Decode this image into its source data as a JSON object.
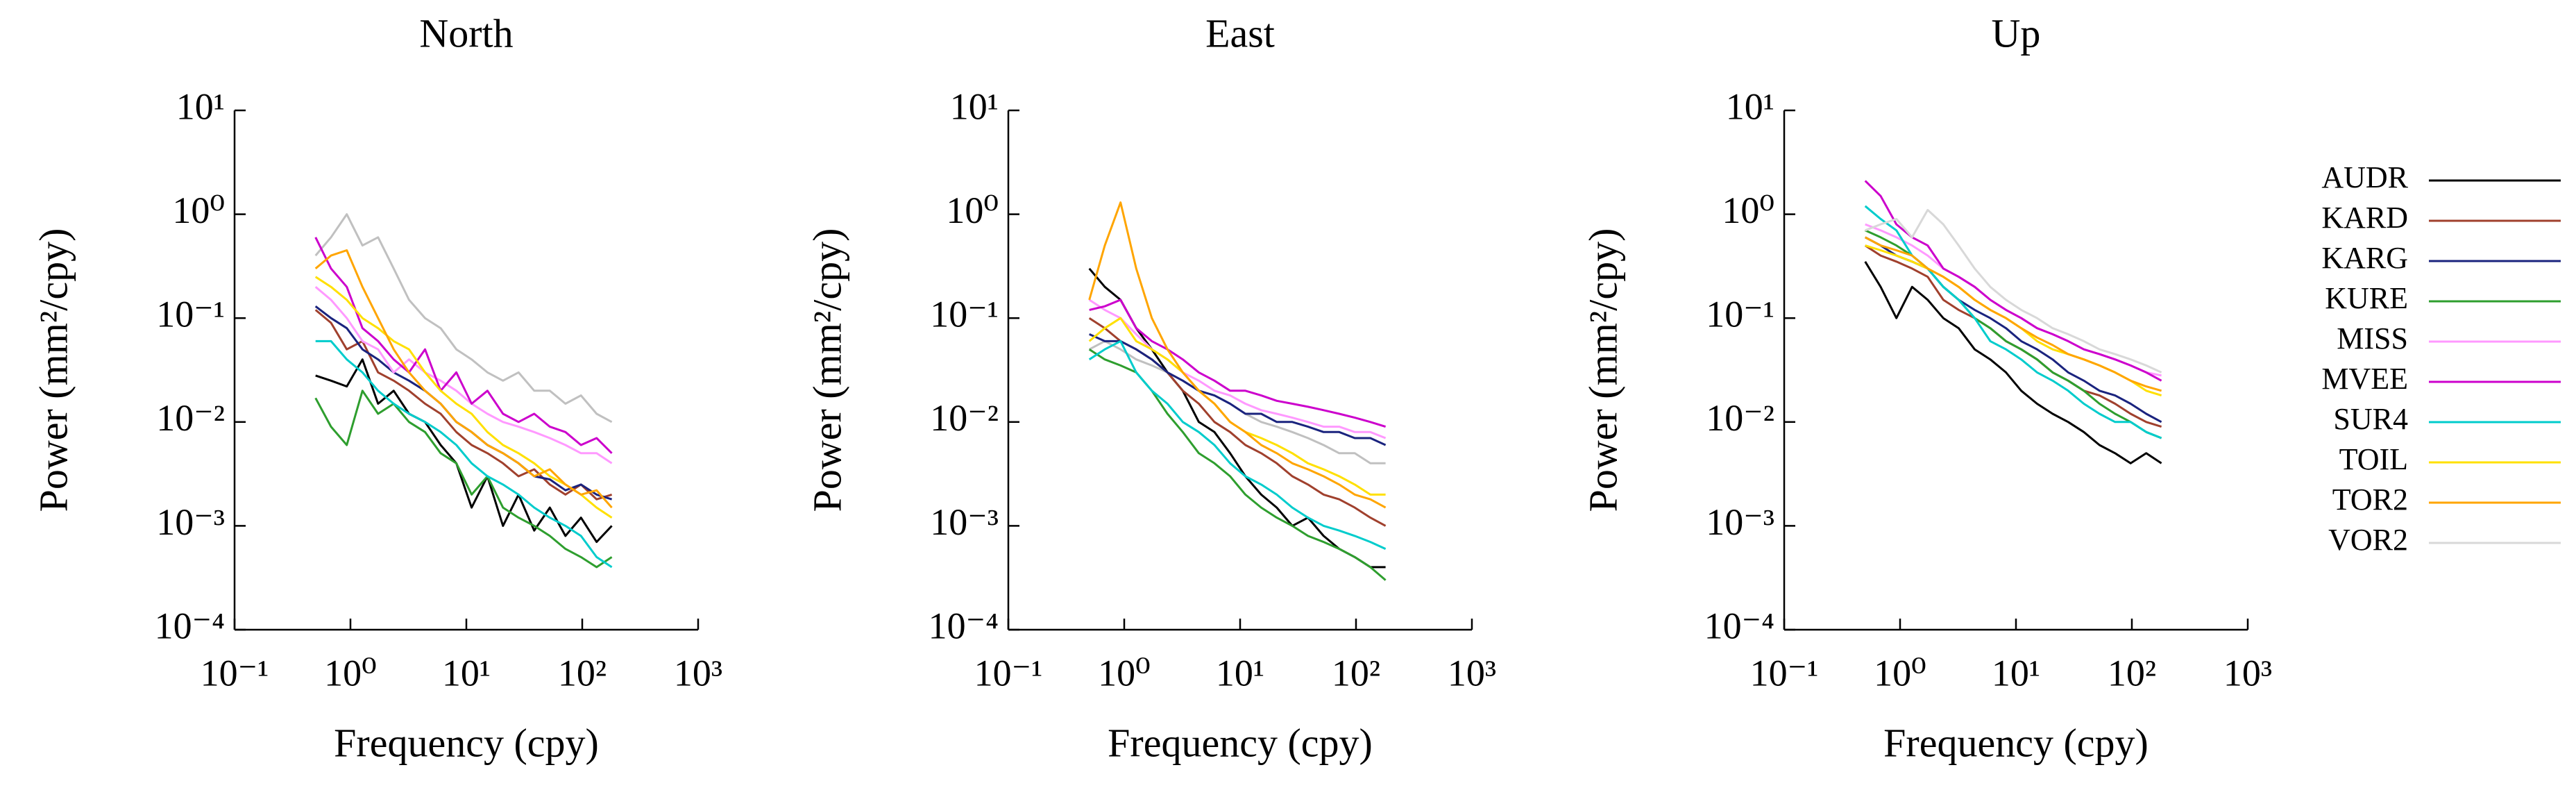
{
  "chart_data": [
    {
      "type": "line",
      "title": "North",
      "xlabel": "Frequency (cpy)",
      "ylabel": "Power (mm²/cpy)",
      "log_x": true,
      "log_y": true,
      "xlim": [
        0.1,
        1000
      ],
      "ylim": [
        0.0001,
        10
      ],
      "xticks": [
        {
          "value": 0.1,
          "label": "10⁻¹"
        },
        {
          "value": 1,
          "label": "10⁰"
        },
        {
          "value": 10,
          "label": "10¹"
        },
        {
          "value": 100,
          "label": "10²"
        },
        {
          "value": 1000,
          "label": "10³"
        }
      ],
      "yticks": [
        {
          "value": 0.0001,
          "label": "10⁻⁴"
        },
        {
          "value": 0.001,
          "label": "10⁻³"
        },
        {
          "value": 0.01,
          "label": "10⁻²"
        },
        {
          "value": 0.1,
          "label": "10⁻¹"
        },
        {
          "value": 1,
          "label": "10⁰"
        },
        {
          "value": 10,
          "label": "10¹"
        }
      ],
      "x": [
        0.5,
        0.68,
        0.93,
        1.27,
        1.73,
        2.36,
        3.2,
        4.4,
        6,
        8.2,
        11.1,
        15.2,
        20.7,
        28.2,
        38.5,
        52.5,
        71.6,
        97.6,
        133,
        180
      ],
      "series": [
        {
          "name": "VOR2",
          "color": "#c0c0c0",
          "values": [
            0.4,
            0.6,
            1.0,
            0.5,
            0.6,
            0.3,
            0.15,
            0.1,
            0.08,
            0.05,
            0.04,
            0.03,
            0.025,
            0.03,
            0.02,
            0.02,
            0.015,
            0.018,
            0.012,
            0.01
          ]
        },
        {
          "name": "AUDR",
          "color": "#000000",
          "values": [
            0.028,
            0.025,
            0.022,
            0.04,
            0.015,
            0.02,
            0.012,
            0.01,
            0.006,
            0.004,
            0.0015,
            0.003,
            0.001,
            0.002,
            0.0009,
            0.0015,
            0.0008,
            0.0012,
            0.0007,
            0.001
          ]
        },
        {
          "name": "KARD",
          "color": "#a0402d",
          "values": [
            0.12,
            0.09,
            0.05,
            0.06,
            0.03,
            0.025,
            0.02,
            0.015,
            0.012,
            0.008,
            0.006,
            0.005,
            0.004,
            0.003,
            0.0035,
            0.0025,
            0.002,
            0.0025,
            0.0018,
            0.002
          ]
        },
        {
          "name": "KARG",
          "color": "#1a237e",
          "values": [
            0.13,
            0.1,
            0.08,
            0.05,
            0.04,
            0.03,
            0.025,
            0.02,
            0.015,
            0.01,
            0.008,
            0.006,
            0.005,
            0.004,
            0.003,
            0.0028,
            0.0022,
            0.0025,
            0.002,
            0.0018
          ]
        },
        {
          "name": "KURE",
          "color": "#2e9e2e",
          "values": [
            0.017,
            0.009,
            0.006,
            0.02,
            0.012,
            0.015,
            0.01,
            0.008,
            0.005,
            0.004,
            0.002,
            0.003,
            0.0015,
            0.0012,
            0.001,
            0.0008,
            0.0006,
            0.0005,
            0.0004,
            0.0005
          ]
        },
        {
          "name": "MISS",
          "color": "#ff99ff",
          "values": [
            0.2,
            0.15,
            0.1,
            0.06,
            0.05,
            0.03,
            0.04,
            0.03,
            0.025,
            0.02,
            0.015,
            0.012,
            0.01,
            0.009,
            0.008,
            0.007,
            0.006,
            0.005,
            0.005,
            0.004
          ]
        },
        {
          "name": "MVEE",
          "color": "#cc00cc",
          "values": [
            0.6,
            0.3,
            0.2,
            0.08,
            0.06,
            0.04,
            0.03,
            0.05,
            0.02,
            0.03,
            0.015,
            0.02,
            0.012,
            0.01,
            0.012,
            0.009,
            0.008,
            0.006,
            0.007,
            0.005
          ]
        },
        {
          "name": "SUR4",
          "color": "#00cccc",
          "values": [
            0.06,
            0.06,
            0.04,
            0.03,
            0.02,
            0.015,
            0.012,
            0.01,
            0.008,
            0.006,
            0.004,
            0.003,
            0.0025,
            0.002,
            0.0015,
            0.0012,
            0.001,
            0.0008,
            0.0005,
            0.0004
          ]
        },
        {
          "name": "TOIL",
          "color": "#ffe000",
          "values": [
            0.25,
            0.2,
            0.15,
            0.1,
            0.08,
            0.06,
            0.05,
            0.03,
            0.02,
            0.015,
            0.012,
            0.008,
            0.006,
            0.005,
            0.004,
            0.003,
            0.0025,
            0.002,
            0.0015,
            0.0012
          ]
        },
        {
          "name": "TOR2",
          "color": "#ffa500",
          "values": [
            0.3,
            0.4,
            0.45,
            0.2,
            0.1,
            0.05,
            0.03,
            0.02,
            0.015,
            0.01,
            0.008,
            0.006,
            0.005,
            0.004,
            0.003,
            0.0035,
            0.0025,
            0.002,
            0.0022,
            0.0015
          ]
        }
      ]
    },
    {
      "type": "line",
      "title": "East",
      "xlabel": "Frequency (cpy)",
      "ylabel": "Power (mm²/cpy)",
      "log_x": true,
      "log_y": true,
      "xlim": [
        0.1,
        1000
      ],
      "ylim": [
        0.0001,
        10
      ],
      "xticks": [
        {
          "value": 0.1,
          "label": "10⁻¹"
        },
        {
          "value": 1,
          "label": "10⁰"
        },
        {
          "value": 10,
          "label": "10¹"
        },
        {
          "value": 100,
          "label": "10²"
        },
        {
          "value": 1000,
          "label": "10³"
        }
      ],
      "yticks": [
        {
          "value": 0.0001,
          "label": "10⁻⁴"
        },
        {
          "value": 0.001,
          "label": "10⁻³"
        },
        {
          "value": 0.01,
          "label": "10⁻²"
        },
        {
          "value": 0.1,
          "label": "10⁻¹"
        },
        {
          "value": 1,
          "label": "10⁰"
        },
        {
          "value": 10,
          "label": "10¹"
        }
      ],
      "x": [
        0.5,
        0.68,
        0.93,
        1.27,
        1.73,
        2.36,
        3.2,
        4.4,
        6,
        8.2,
        11.1,
        15.2,
        20.7,
        28.2,
        38.5,
        52.5,
        71.6,
        97.6,
        133,
        180
      ],
      "series": [
        {
          "name": "VOR2",
          "color": "#c0c0c0",
          "values": [
            0.05,
            0.06,
            0.05,
            0.04,
            0.035,
            0.03,
            0.025,
            0.02,
            0.018,
            0.015,
            0.012,
            0.01,
            0.009,
            0.008,
            0.007,
            0.006,
            0.005,
            0.005,
            0.004,
            0.004
          ]
        },
        {
          "name": "AUDR",
          "color": "#000000",
          "values": [
            0.3,
            0.2,
            0.15,
            0.08,
            0.05,
            0.03,
            0.02,
            0.01,
            0.008,
            0.005,
            0.003,
            0.002,
            0.0015,
            0.001,
            0.0012,
            0.0008,
            0.0006,
            0.0005,
            0.0004,
            0.0004
          ]
        },
        {
          "name": "KARD",
          "color": "#a0402d",
          "values": [
            0.1,
            0.08,
            0.06,
            0.05,
            0.04,
            0.03,
            0.02,
            0.015,
            0.01,
            0.008,
            0.006,
            0.005,
            0.004,
            0.003,
            0.0025,
            0.002,
            0.0018,
            0.0015,
            0.0012,
            0.001
          ]
        },
        {
          "name": "KARG",
          "color": "#1a237e",
          "values": [
            0.07,
            0.06,
            0.06,
            0.05,
            0.04,
            0.03,
            0.025,
            0.02,
            0.018,
            0.015,
            0.012,
            0.012,
            0.01,
            0.01,
            0.009,
            0.008,
            0.008,
            0.007,
            0.007,
            0.006
          ]
        },
        {
          "name": "KURE",
          "color": "#2e9e2e",
          "values": [
            0.05,
            0.04,
            0.035,
            0.03,
            0.02,
            0.012,
            0.008,
            0.005,
            0.004,
            0.003,
            0.002,
            0.0015,
            0.0012,
            0.001,
            0.0008,
            0.0007,
            0.0006,
            0.0005,
            0.0004,
            0.0003
          ]
        },
        {
          "name": "MISS",
          "color": "#ff99ff",
          "values": [
            0.15,
            0.12,
            0.1,
            0.07,
            0.05,
            0.04,
            0.03,
            0.025,
            0.02,
            0.018,
            0.015,
            0.013,
            0.012,
            0.011,
            0.01,
            0.009,
            0.009,
            0.008,
            0.008,
            0.007
          ]
        },
        {
          "name": "MVEE",
          "color": "#cc00cc",
          "values": [
            0.12,
            0.13,
            0.15,
            0.08,
            0.06,
            0.05,
            0.04,
            0.03,
            0.025,
            0.02,
            0.02,
            0.018,
            0.016,
            0.015,
            0.014,
            0.013,
            0.012,
            0.011,
            0.01,
            0.009
          ]
        },
        {
          "name": "SUR4",
          "color": "#00cccc",
          "values": [
            0.04,
            0.05,
            0.06,
            0.03,
            0.02,
            0.015,
            0.01,
            0.008,
            0.006,
            0.004,
            0.003,
            0.0025,
            0.002,
            0.0015,
            0.0012,
            0.001,
            0.0009,
            0.0008,
            0.0007,
            0.0006
          ]
        },
        {
          "name": "TOIL",
          "color": "#ffe000",
          "values": [
            0.06,
            0.08,
            0.1,
            0.06,
            0.05,
            0.04,
            0.03,
            0.02,
            0.015,
            0.01,
            0.008,
            0.007,
            0.006,
            0.005,
            0.004,
            0.0035,
            0.003,
            0.0025,
            0.002,
            0.002
          ]
        },
        {
          "name": "TOR2",
          "color": "#ffa500",
          "values": [
            0.15,
            0.5,
            1.3,
            0.3,
            0.1,
            0.05,
            0.03,
            0.02,
            0.015,
            0.01,
            0.008,
            0.006,
            0.005,
            0.004,
            0.0035,
            0.003,
            0.0025,
            0.002,
            0.0018,
            0.0015
          ]
        }
      ]
    },
    {
      "type": "line",
      "title": "Up",
      "xlabel": "Frequency (cpy)",
      "ylabel": "Power (mm²/cpy)",
      "log_x": true,
      "log_y": true,
      "legend": "right",
      "xlim": [
        0.1,
        1000
      ],
      "ylim": [
        0.0001,
        10
      ],
      "xticks": [
        {
          "value": 0.1,
          "label": "10⁻¹"
        },
        {
          "value": 1,
          "label": "10⁰"
        },
        {
          "value": 10,
          "label": "10¹"
        },
        {
          "value": 100,
          "label": "10²"
        },
        {
          "value": 1000,
          "label": "10³"
        }
      ],
      "yticks": [
        {
          "value": 0.0001,
          "label": "10⁻⁴"
        },
        {
          "value": 0.001,
          "label": "10⁻³"
        },
        {
          "value": 0.01,
          "label": "10⁻²"
        },
        {
          "value": 0.1,
          "label": "10⁻¹"
        },
        {
          "value": 1,
          "label": "10⁰"
        },
        {
          "value": 10,
          "label": "10¹"
        }
      ],
      "x": [
        0.5,
        0.68,
        0.93,
        1.27,
        1.73,
        2.36,
        3.2,
        4.4,
        6,
        8.2,
        11.1,
        15.2,
        20.7,
        28.2,
        38.5,
        52.5,
        71.6,
        97.6,
        133,
        180
      ],
      "series": [
        {
          "name": "AUDR",
          "color": "#000000",
          "values": [
            0.35,
            0.2,
            0.1,
            0.2,
            0.15,
            0.1,
            0.08,
            0.05,
            0.04,
            0.03,
            0.02,
            0.015,
            0.012,
            0.01,
            0.008,
            0.006,
            0.005,
            0.004,
            0.005,
            0.004
          ]
        },
        {
          "name": "KARD",
          "color": "#a0402d",
          "values": [
            0.5,
            0.4,
            0.35,
            0.3,
            0.25,
            0.15,
            0.12,
            0.1,
            0.08,
            0.06,
            0.05,
            0.04,
            0.03,
            0.025,
            0.02,
            0.018,
            0.015,
            0.012,
            0.01,
            0.009
          ]
        },
        {
          "name": "KARG",
          "color": "#1a237e",
          "values": [
            0.6,
            0.5,
            0.4,
            0.35,
            0.3,
            0.2,
            0.15,
            0.12,
            0.1,
            0.08,
            0.06,
            0.05,
            0.04,
            0.03,
            0.025,
            0.02,
            0.018,
            0.015,
            0.012,
            0.01
          ]
        },
        {
          "name": "KURE",
          "color": "#2e9e2e",
          "values": [
            0.7,
            0.6,
            0.5,
            0.4,
            0.3,
            0.2,
            0.15,
            0.1,
            0.08,
            0.06,
            0.05,
            0.04,
            0.03,
            0.025,
            0.02,
            0.015,
            0.012,
            0.01,
            0.008,
            0.007
          ]
        },
        {
          "name": "MISS",
          "color": "#ff99ff",
          "values": [
            0.8,
            0.7,
            0.6,
            0.5,
            0.4,
            0.3,
            0.25,
            0.2,
            0.15,
            0.12,
            0.1,
            0.08,
            0.07,
            0.06,
            0.05,
            0.045,
            0.04,
            0.035,
            0.03,
            0.028
          ]
        },
        {
          "name": "MVEE",
          "color": "#cc00cc",
          "values": [
            2.1,
            1.5,
            0.8,
            0.6,
            0.5,
            0.3,
            0.25,
            0.2,
            0.15,
            0.12,
            0.1,
            0.08,
            0.07,
            0.06,
            0.05,
            0.045,
            0.04,
            0.035,
            0.03,
            0.025
          ]
        },
        {
          "name": "SUR4",
          "color": "#00cccc",
          "values": [
            1.2,
            0.9,
            0.7,
            0.4,
            0.3,
            0.2,
            0.15,
            0.1,
            0.06,
            0.05,
            0.04,
            0.03,
            0.025,
            0.02,
            0.015,
            0.012,
            0.01,
            0.01,
            0.008,
            0.007
          ]
        },
        {
          "name": "TOIL",
          "color": "#ffe000",
          "values": [
            0.5,
            0.45,
            0.4,
            0.35,
            0.3,
            0.25,
            0.2,
            0.15,
            0.12,
            0.1,
            0.08,
            0.06,
            0.05,
            0.045,
            0.04,
            0.035,
            0.03,
            0.025,
            0.02,
            0.018
          ]
        },
        {
          "name": "TOR2",
          "color": "#ffa500",
          "values": [
            0.6,
            0.5,
            0.45,
            0.4,
            0.3,
            0.25,
            0.2,
            0.15,
            0.12,
            0.1,
            0.08,
            0.065,
            0.055,
            0.045,
            0.04,
            0.035,
            0.03,
            0.025,
            0.022,
            0.02
          ]
        },
        {
          "name": "VOR2",
          "color": "#d8d8d8",
          "values": [
            0.7,
            0.8,
            0.9,
            0.6,
            1.1,
            0.8,
            0.5,
            0.3,
            0.2,
            0.15,
            0.12,
            0.1,
            0.08,
            0.07,
            0.06,
            0.05,
            0.045,
            0.04,
            0.035,
            0.03
          ]
        }
      ]
    }
  ]
}
